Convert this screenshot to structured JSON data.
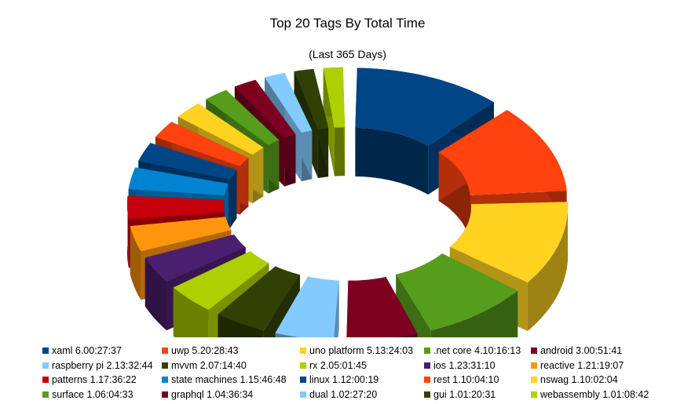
{
  "title": "Top 20 Tags By Total Time",
  "subtitle": "(Last 365 Days)",
  "chart_data": {
    "type": "pie",
    "style": "3d-doughnut",
    "title": "Top 20 Tags By Total Time",
    "subtitle": "(Last 365 Days)",
    "legend_position": "bottom",
    "unit": "hours (h.mm:ss)",
    "slices": [
      {
        "name": "xaml",
        "label": "xaml 6.00:27:37",
        "value": 144.46,
        "color": "#004586"
      },
      {
        "name": "uwp",
        "label": "uwp 5.20:28:43",
        "value": 140.48,
        "color": "#ff420e"
      },
      {
        "name": "uno platform",
        "label": "uno platform 5.13:24:03",
        "value": 133.4,
        "color": "#ffd320"
      },
      {
        "name": ".net core",
        "label": ".net core 4.10:16:13",
        "value": 106.27,
        "color": "#579d1c"
      },
      {
        "name": "android",
        "label": "android 3.00:51:41",
        "value": 72.86,
        "color": "#7e0021"
      },
      {
        "name": "raspberry pi",
        "label": "raspberry pi 2.13:32:44",
        "value": 61.55,
        "color": "#83caff"
      },
      {
        "name": "mvvm",
        "label": "mvvm 2.07:14:40",
        "value": 55.24,
        "color": "#314004"
      },
      {
        "name": "rx",
        "label": "rx 2.05:01:45",
        "value": 53.03,
        "color": "#aecf00"
      },
      {
        "name": "ios",
        "label": "ios 1.23:31:10",
        "value": 47.52,
        "color": "#4b1f6f"
      },
      {
        "name": "reactive",
        "label": "reactive 1.21:19:07",
        "value": 45.32,
        "color": "#ff950e"
      },
      {
        "name": "patterns",
        "label": "patterns 1.17:36:22",
        "value": 41.61,
        "color": "#c5000b"
      },
      {
        "name": "state machines",
        "label": "state machines 1.15:46:48",
        "value": 39.78,
        "color": "#0084d1"
      },
      {
        "name": "linux",
        "label": "linux 1.12:00:19",
        "value": 36.01,
        "color": "#004586"
      },
      {
        "name": "rest",
        "label": "rest 1.10:04:10",
        "value": 34.07,
        "color": "#ff420e"
      },
      {
        "name": "nswag",
        "label": "nswag 1.10:02:04",
        "value": 34.03,
        "color": "#ffd320"
      },
      {
        "name": "surface",
        "label": "surface 1.06:04:33",
        "value": 30.08,
        "color": "#579d1c"
      },
      {
        "name": "graphql",
        "label": "graphql 1.04:36:34",
        "value": 28.61,
        "color": "#7e0021"
      },
      {
        "name": "dual",
        "label": "dual 1.02:27:20",
        "value": 26.46,
        "color": "#83caff"
      },
      {
        "name": "gui",
        "label": "gui 1.01:20:31",
        "value": 25.34,
        "color": "#314004"
      },
      {
        "name": "webassembly",
        "label": "webassembly 1.01:08:42",
        "value": 25.15,
        "color": "#aecf00"
      }
    ]
  }
}
